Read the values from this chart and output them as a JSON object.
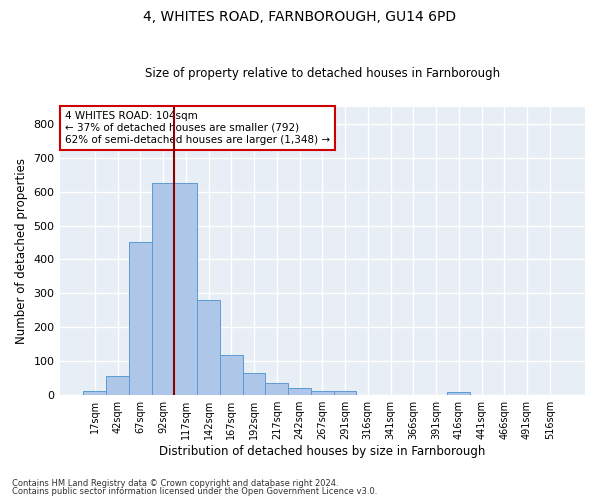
{
  "title1": "4, WHITES ROAD, FARNBOROUGH, GU14 6PD",
  "title2": "Size of property relative to detached houses in Farnborough",
  "xlabel": "Distribution of detached houses by size in Farnborough",
  "ylabel": "Number of detached properties",
  "bar_labels": [
    "17sqm",
    "42sqm",
    "67sqm",
    "92sqm",
    "117sqm",
    "142sqm",
    "167sqm",
    "192sqm",
    "217sqm",
    "242sqm",
    "267sqm",
    "291sqm",
    "316sqm",
    "341sqm",
    "366sqm",
    "391sqm",
    "416sqm",
    "441sqm",
    "466sqm",
    "491sqm",
    "516sqm"
  ],
  "bar_values": [
    12,
    55,
    450,
    625,
    625,
    280,
    118,
    63,
    35,
    20,
    10,
    10,
    0,
    0,
    0,
    0,
    8,
    0,
    0,
    0,
    0
  ],
  "bar_color": "#aec6e8",
  "bar_edge_color": "#5b9bd5",
  "fig_background_color": "#ffffff",
  "ax_background_color": "#e8eef5",
  "grid_color": "#ffffff",
  "vline_x": 3.5,
  "vline_color": "#8b0000",
  "annotation_text": "4 WHITES ROAD: 104sqm\n← 37% of detached houses are smaller (792)\n62% of semi-detached houses are larger (1,348) →",
  "annotation_box_color": "#ffffff",
  "annotation_box_edge_color": "#cc0000",
  "ylim": [
    0,
    850
  ],
  "yticks": [
    0,
    100,
    200,
    300,
    400,
    500,
    600,
    700,
    800
  ],
  "footnote1": "Contains HM Land Registry data © Crown copyright and database right 2024.",
  "footnote2": "Contains public sector information licensed under the Open Government Licence v3.0."
}
